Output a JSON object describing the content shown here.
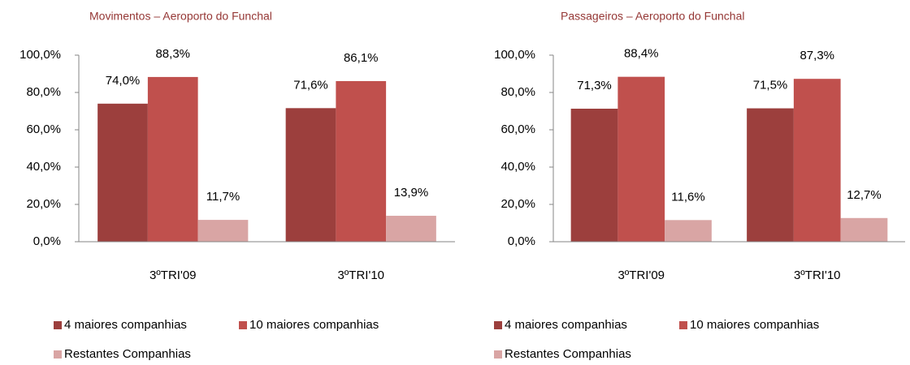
{
  "chart_data": [
    {
      "type": "bar",
      "title": "Movimentos – Aeroporto do Funchal",
      "categories": [
        "3ºTRI'09",
        "3ºTRI'10"
      ],
      "series": [
        {
          "name": "4 maiores companhias",
          "color": "#9c3f3d",
          "values": [
            74.0,
            71.6
          ],
          "value_labels": [
            "74,0%",
            "71,6%"
          ]
        },
        {
          "name": "10 maiores companhias",
          "color": "#c0504d",
          "values": [
            88.3,
            86.1
          ],
          "value_labels": [
            "88,3%",
            "86,1%"
          ]
        },
        {
          "name": "Restantes Companhias",
          "color": "#d9a5a4",
          "values": [
            11.7,
            13.9
          ],
          "value_labels": [
            "11,7%",
            "13,9%"
          ]
        }
      ],
      "ylim": [
        0,
        100
      ],
      "yticks": [
        {
          "value": 0,
          "label": "0,0%"
        },
        {
          "value": 20,
          "label": "20,0%"
        },
        {
          "value": 40,
          "label": "40,0%"
        },
        {
          "value": 60,
          "label": "60,0%"
        },
        {
          "value": 80,
          "label": "80,0%"
        },
        {
          "value": 100,
          "label": "100,0%"
        }
      ],
      "grid": false,
      "legend": "bottom"
    },
    {
      "type": "bar",
      "title": "Passageiros – Aeroporto do Funchal",
      "categories": [
        "3ºTRI'09",
        "3ºTRI'10"
      ],
      "series": [
        {
          "name": "4 maiores companhias",
          "color": "#9c3f3d",
          "values": [
            71.3,
            71.5
          ],
          "value_labels": [
            "71,3%",
            "71,5%"
          ]
        },
        {
          "name": "10 maiores companhias",
          "color": "#c0504d",
          "values": [
            88.4,
            87.3
          ],
          "value_labels": [
            "88,4%",
            "87,3%"
          ]
        },
        {
          "name": "Restantes Companhias",
          "color": "#d9a5a4",
          "values": [
            11.6,
            12.7
          ],
          "value_labels": [
            "11,6%",
            "12,7%"
          ]
        }
      ],
      "ylim": [
        0,
        100
      ],
      "yticks": [
        {
          "value": 0,
          "label": "0,0%"
        },
        {
          "value": 20,
          "label": "20,0%"
        },
        {
          "value": 40,
          "label": "40,0%"
        },
        {
          "value": 60,
          "label": "60,0%"
        },
        {
          "value": 80,
          "label": "80,0%"
        },
        {
          "value": 100,
          "label": "100,0%"
        }
      ],
      "grid": false,
      "legend": "bottom"
    }
  ]
}
